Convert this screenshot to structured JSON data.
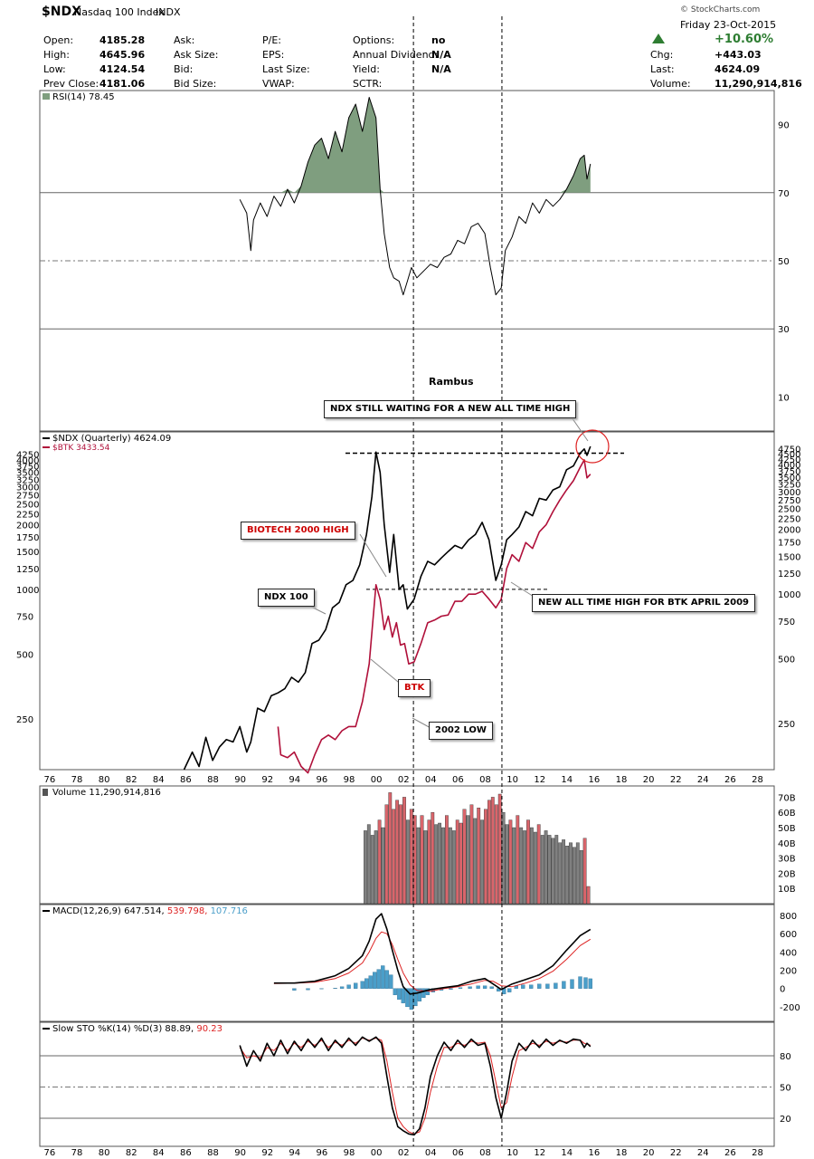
{
  "header": {
    "symbol": "$NDX",
    "name": "Nasdaq 100 Index",
    "exchange": "INDX",
    "date": "Friday  23-Oct-2015",
    "pct_change": "+10.60%",
    "watermark": "© StockCharts.com",
    "col1": [
      [
        "Open:",
        "4185.28"
      ],
      [
        "High:",
        "4645.96"
      ],
      [
        "Low:",
        "4124.54"
      ],
      [
        "Prev Close:",
        "4181.06"
      ]
    ],
    "col2": [
      "Ask:",
      "Ask Size:",
      "Bid:",
      "Bid Size:"
    ],
    "col3": [
      "P/E:",
      "EPS:",
      "Last Size:",
      "VWAP:"
    ],
    "col4": [
      [
        "Options:",
        "no"
      ],
      [
        "Annual Dividend:",
        "N/A"
      ],
      [
        "Yield:",
        "N/A"
      ],
      [
        "SCTR:",
        ""
      ]
    ],
    "col5": [
      [
        "Chg:",
        "+443.03"
      ],
      [
        "Last:",
        "4624.09"
      ],
      [
        "Volume:",
        "11,290,914,816"
      ]
    ]
  },
  "colors": {
    "ndx": "#000000",
    "btk": "#b0103a",
    "rsi_fill": "#7f9e7f",
    "vol_up": "#808080",
    "vol_down": "#d9656b",
    "macd_hist": "#4a9ec9",
    "signal": "#dd2222",
    "up_triangle": "#2e7d32"
  },
  "chart_data": [
    {
      "type": "line",
      "id": "rsi",
      "title": "RSI(14) 78.45",
      "yticks": [
        90,
        70,
        50,
        30,
        10
      ],
      "ylim": [
        0,
        100
      ],
      "levels": [
        70,
        30
      ],
      "x": [
        1990.0,
        1990.5,
        1990.8,
        1991.0,
        1991.5,
        1992.0,
        1992.5,
        1993.0,
        1993.5,
        1994.0,
        1994.5,
        1995.0,
        1995.5,
        1996.0,
        1996.5,
        1997.0,
        1997.5,
        1998.0,
        1998.5,
        1999.0,
        1999.5,
        2000.0,
        2000.3,
        2000.6,
        2001.0,
        2001.3,
        2001.7,
        2002.0,
        2002.3,
        2002.6,
        2003.0,
        2003.5,
        2004.0,
        2004.5,
        2005.0,
        2005.5,
        2006.0,
        2006.5,
        2007.0,
        2007.5,
        2008.0,
        2008.4,
        2008.8,
        2009.2,
        2009.5,
        2010.0,
        2010.5,
        2011.0,
        2011.5,
        2012.0,
        2012.5,
        2013.0,
        2013.5,
        2014.0,
        2014.5,
        2015.0,
        2015.3,
        2015.5,
        2015.75
      ],
      "values": [
        68,
        64,
        53,
        62,
        67,
        63,
        69,
        66,
        71,
        67,
        72,
        79,
        84,
        86,
        80,
        88,
        82,
        92,
        96,
        88,
        98,
        92,
        71,
        58,
        48,
        45,
        44,
        40,
        44,
        48,
        45,
        47,
        49,
        48,
        51,
        52,
        56,
        55,
        60,
        61,
        58,
        48,
        40,
        42,
        53,
        57,
        63,
        61,
        67,
        64,
        68,
        66,
        68,
        71,
        75,
        80,
        81,
        74,
        78.45
      ]
    },
    {
      "type": "line",
      "id": "price",
      "title": "Rambus",
      "scale": "log",
      "yticks_left": [
        4250,
        4000,
        3750,
        3500,
        3250,
        3000,
        2750,
        2500,
        2250,
        2000,
        1750,
        1500,
        1250,
        1000,
        750,
        500,
        250
      ],
      "yticks_right": [
        4750,
        4500,
        4250,
        4000,
        3750,
        3500,
        3250,
        3000,
        2750,
        2500,
        2250,
        2000,
        1750,
        1500,
        1250,
        1000,
        750,
        500,
        250
      ],
      "xticks": [
        "76",
        "78",
        "80",
        "82",
        "84",
        "86",
        "88",
        "90",
        "92",
        "94",
        "96",
        "98",
        "00",
        "02",
        "04",
        "06",
        "08",
        "10",
        "12",
        "14",
        "16",
        "18",
        "20",
        "22",
        "24",
        "26",
        "28"
      ],
      "series": [
        {
          "name": "$NDX (Quarterly) 4624.09",
          "x": [
            1985.9,
            1986.5,
            1987.0,
            1987.5,
            1988.0,
            1988.5,
            1989.0,
            1989.5,
            1990.0,
            1990.5,
            1990.8,
            1991.3,
            1991.8,
            1992.3,
            1992.8,
            1993.3,
            1993.8,
            1994.3,
            1994.8,
            1995.3,
            1995.8,
            1996.3,
            1996.8,
            1997.3,
            1997.8,
            1998.3,
            1998.8,
            1999.3,
            1999.7,
            2000.0,
            2000.3,
            2000.6,
            2001.0,
            2001.3,
            2001.7,
            2002.0,
            2002.3,
            2002.8,
            2003.3,
            2003.8,
            2004.3,
            2004.8,
            2005.3,
            2005.8,
            2006.3,
            2006.8,
            2007.3,
            2007.8,
            2008.3,
            2008.8,
            2009.2,
            2009.6,
            2010.0,
            2010.5,
            2011.0,
            2011.5,
            2012.0,
            2012.5,
            2013.0,
            2013.5,
            2014.0,
            2014.5,
            2015.0,
            2015.3,
            2015.5,
            2015.75
          ],
          "values": [
            145,
            175,
            150,
            205,
            160,
            185,
            200,
            195,
            230,
            175,
            195,
            280,
            270,
            320,
            330,
            345,
            390,
            370,
            410,
            560,
            580,
            650,
            820,
            870,
            1050,
            1100,
            1300,
            1800,
            2700,
            4350,
            3500,
            2000,
            1200,
            1800,
            1000,
            1050,
            810,
            900,
            1150,
            1350,
            1300,
            1400,
            1500,
            1600,
            1550,
            1700,
            1800,
            2050,
            1700,
            1100,
            1300,
            1700,
            1800,
            1950,
            2300,
            2200,
            2650,
            2600,
            2900,
            3000,
            3600,
            3750,
            4300,
            4500,
            4200,
            4624.09
          ]
        },
        {
          "name": "$BTK 3433.54",
          "x": [
            1992.8,
            1993.0,
            1993.5,
            1994.0,
            1994.5,
            1995.0,
            1995.5,
            1996.0,
            1996.5,
            1997.0,
            1997.5,
            1998.0,
            1998.5,
            1999.0,
            1999.5,
            2000.0,
            2000.3,
            2000.6,
            2000.9,
            2001.2,
            2001.5,
            2001.8,
            2002.1,
            2002.4,
            2002.8,
            2003.3,
            2003.8,
            2004.3,
            2004.8,
            2005.3,
            2005.8,
            2006.3,
            2006.8,
            2007.3,
            2007.8,
            2008.3,
            2008.8,
            2009.2,
            2009.6,
            2010.0,
            2010.5,
            2011.0,
            2011.5,
            2012.0,
            2012.5,
            2013.0,
            2013.5,
            2014.0,
            2014.5,
            2015.0,
            2015.3,
            2015.5,
            2015.75
          ],
          "values": [
            230,
            170,
            165,
            175,
            150,
            140,
            170,
            200,
            210,
            200,
            220,
            230,
            230,
            300,
            450,
            1050,
            900,
            650,
            750,
            600,
            700,
            550,
            560,
            450,
            460,
            560,
            700,
            720,
            750,
            760,
            880,
            880,
            950,
            950,
            980,
            900,
            820,
            900,
            1250,
            1450,
            1350,
            1650,
            1550,
            1850,
            2000,
            2300,
            2600,
            2900,
            3200,
            3700,
            4000,
            3300,
            3433.54
          ]
        }
      ],
      "annotations": [
        "NDX STILL WAITING FOR A NEW ALL TIME HIGH",
        "BIOTECH 2000 HIGH",
        "NDX 100",
        "BTK",
        "2002 LOW",
        "NEW ALL TIME HIGH FOR BTK APRIL 2009"
      ]
    },
    {
      "type": "bar",
      "id": "volume",
      "title": "Volume 11,290,914,816",
      "yticks": [
        "70B",
        "60B",
        "50B",
        "40B",
        "30B",
        "20B",
        "10B"
      ],
      "ylim": [
        0,
        75
      ],
      "values": [
        48,
        52,
        45,
        48,
        55,
        50,
        65,
        73,
        62,
        68,
        65,
        70,
        55,
        62,
        58,
        50,
        58,
        48,
        55,
        60,
        52,
        53,
        50,
        58,
        50,
        48,
        55,
        53,
        62,
        58,
        65,
        56,
        63,
        55,
        62,
        68,
        70,
        65,
        72,
        60,
        52,
        55,
        50,
        58,
        50,
        48,
        55,
        50,
        47,
        52,
        45,
        48,
        45,
        43,
        45,
        40,
        42,
        38,
        40,
        37,
        40,
        35,
        43,
        11.29
      ],
      "down_flags": [
        0,
        0,
        0,
        0,
        1,
        0,
        1,
        1,
        1,
        1,
        1,
        1,
        0,
        1,
        1,
        0,
        1,
        0,
        1,
        1,
        0,
        0,
        0,
        1,
        0,
        0,
        1,
        1,
        1,
        0,
        1,
        0,
        1,
        0,
        1,
        1,
        1,
        1,
        1,
        0,
        0,
        1,
        0,
        1,
        0,
        0,
        1,
        0,
        0,
        1,
        0,
        0,
        0,
        0,
        0,
        0,
        0,
        0,
        0,
        0,
        0,
        0,
        1,
        1
      ]
    },
    {
      "type": "line",
      "id": "macd",
      "title": "MACD(12,26,9)",
      "values_label": [
        "647.514",
        "539.798",
        "107.716"
      ],
      "yticks": [
        800,
        600,
        400,
        200,
        0,
        -200
      ],
      "ylim": [
        -300,
        880
      ],
      "x": [
        1992.5,
        1994.0,
        1995.5,
        1997.0,
        1998.0,
        1999.0,
        1999.5,
        2000.0,
        2000.4,
        2000.8,
        2001.2,
        2001.6,
        2002.0,
        2002.5,
        2003.0,
        2004.0,
        2005.0,
        2006.0,
        2007.0,
        2008.0,
        2008.6,
        2009.2,
        2010.0,
        2011.0,
        2012.0,
        2013.0,
        2014.0,
        2015.0,
        2015.75
      ],
      "macd": [
        60,
        60,
        80,
        140,
        220,
        360,
        520,
        760,
        820,
        650,
        420,
        200,
        20,
        -60,
        -50,
        -10,
        10,
        30,
        80,
        110,
        50,
        -10,
        50,
        100,
        150,
        250,
        420,
        580,
        647.514
      ],
      "signal": [
        55,
        58,
        70,
        110,
        170,
        280,
        400,
        550,
        620,
        600,
        480,
        320,
        170,
        40,
        -20,
        -30,
        0,
        20,
        50,
        90,
        80,
        30,
        20,
        60,
        110,
        190,
        320,
        470,
        539.798
      ],
      "hist_x": [
        1994.0,
        1995.0,
        1996.0,
        1997.0,
        1997.5,
        1998.0,
        1998.5,
        1999.0,
        1999.3,
        1999.6,
        1999.9,
        2000.2,
        2000.5,
        2000.8,
        2001.1,
        2001.4,
        2001.7,
        2002.0,
        2002.3,
        2002.6,
        2002.9,
        2003.2,
        2003.5,
        2003.8,
        2004.2,
        2004.8,
        2005.5,
        2006.2,
        2006.9,
        2007.5,
        2008.0,
        2008.5,
        2009.0,
        2009.4,
        2009.8,
        2010.3,
        2010.8,
        2011.4,
        2012.0,
        2012.6,
        2013.2,
        2013.8,
        2014.4,
        2015.0,
        2015.4,
        2015.75
      ],
      "hist": [
        -20,
        -15,
        -5,
        5,
        20,
        40,
        60,
        80,
        110,
        140,
        180,
        210,
        250,
        200,
        150,
        -70,
        -120,
        -160,
        -200,
        -230,
        -190,
        -140,
        -100,
        -70,
        -40,
        -20,
        -10,
        10,
        20,
        30,
        30,
        20,
        -30,
        -60,
        -40,
        30,
        40,
        40,
        50,
        50,
        60,
        80,
        100,
        130,
        120,
        107.716
      ]
    },
    {
      "type": "line",
      "id": "stoch",
      "title": "Slow STO %K(14) %D(3)",
      "values_label": [
        "88.89",
        "90.23"
      ],
      "yticks": [
        80,
        50,
        20
      ],
      "ylim": [
        0,
        100
      ],
      "levels": [
        80,
        50,
        20
      ],
      "x": [
        1990.0,
        1990.5,
        1991.0,
        1991.5,
        1992.0,
        1992.5,
        1993.0,
        1993.5,
        1994.0,
        1994.5,
        1995.0,
        1995.5,
        1996.0,
        1996.5,
        1997.0,
        1997.5,
        1998.0,
        1998.5,
        1999.0,
        1999.5,
        2000.0,
        2000.4,
        2000.8,
        2001.2,
        2001.6,
        2002.0,
        2002.4,
        2002.8,
        2003.2,
        2003.6,
        2004.0,
        2004.5,
        2005.0,
        2005.5,
        2006.0,
        2006.5,
        2007.0,
        2007.5,
        2008.0,
        2008.4,
        2008.8,
        2009.2,
        2009.6,
        2010.0,
        2010.5,
        2011.0,
        2011.5,
        2012.0,
        2012.5,
        2013.0,
        2013.5,
        2014.0,
        2014.5,
        2015.0,
        2015.3,
        2015.5,
        2015.75
      ],
      "k": [
        90,
        70,
        85,
        75,
        92,
        80,
        95,
        82,
        94,
        85,
        96,
        88,
        97,
        85,
        95,
        88,
        97,
        90,
        98,
        94,
        98,
        92,
        60,
        30,
        12,
        8,
        5,
        4,
        10,
        30,
        60,
        80,
        93,
        85,
        95,
        88,
        96,
        90,
        92,
        70,
        40,
        20,
        45,
        75,
        92,
        85,
        95,
        88,
        96,
        90,
        95,
        92,
        96,
        95,
        88,
        92,
        88.89
      ],
      "d": [
        88,
        78,
        80,
        78,
        88,
        85,
        92,
        85,
        92,
        88,
        94,
        90,
        95,
        88,
        93,
        90,
        95,
        92,
        97,
        95,
        97,
        95,
        75,
        45,
        20,
        12,
        7,
        5,
        7,
        20,
        45,
        70,
        88,
        88,
        92,
        90,
        94,
        92,
        93,
        80,
        55,
        30,
        35,
        60,
        85,
        88,
        92,
        90,
        94,
        92,
        94,
        93,
        95,
        95,
        92,
        91,
        90.23
      ]
    }
  ]
}
